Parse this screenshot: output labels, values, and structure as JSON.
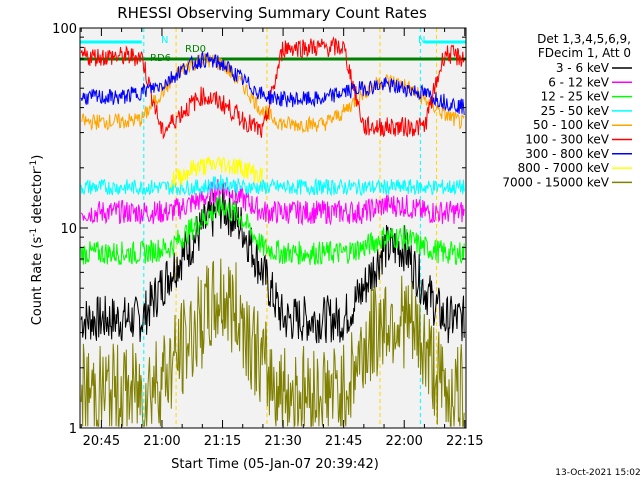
{
  "chart_data": {
    "type": "line",
    "title": "RHESSI Observing Summary Count Rates",
    "xlabel": "Start Time (05-Jan-07 20:39:42)",
    "ylabel": "Count Rate (s",
    "ylabel_sup": "-1",
    "ylabel_tail": " detector",
    "ylabel_sup2": "-1",
    "ylabel_close": ")",
    "y_scale": "log",
    "ylim": [
      1,
      100
    ],
    "xlim_minutes_after_2030": [
      9.7,
      105.3
    ],
    "y_ticks": [
      "100",
      "10",
      "1"
    ],
    "x_ticks": [
      "20:45",
      "21:00",
      "21:15",
      "21:30",
      "21:45",
      "22:00",
      "22:15"
    ],
    "x_tick_minutes_after_2030": [
      15,
      30,
      45,
      60,
      75,
      90,
      105
    ],
    "legend_header": [
      "Det 1,3,4,5,6,9,",
      "FDecim 1, Att 0"
    ],
    "series": [
      {
        "name": "3 - 6 keV",
        "color": "#000000",
        "x": [
          10,
          25,
          32,
          40,
          45,
          50,
          55,
          60,
          68,
          75,
          80,
          85,
          90,
          95,
          100,
          105
        ],
        "y": [
          3.5,
          3.5,
          6,
          10,
          13,
          10,
          6,
          3.5,
          3.5,
          3.5,
          5,
          8,
          8,
          5,
          3.5,
          3.5
        ]
      },
      {
        "name": "6 - 12 keV",
        "color": "#ff00ff",
        "x": [
          10,
          25,
          32,
          40,
          45,
          50,
          55,
          60,
          68,
          75,
          80,
          85,
          90,
          95,
          100,
          105
        ],
        "y": [
          12,
          12,
          12,
          14,
          16,
          14,
          12,
          12,
          12,
          12,
          12,
          13,
          13,
          12,
          12,
          12
        ]
      },
      {
        "name": "12 - 25 keV",
        "color": "#00ff00",
        "x": [
          10,
          25,
          32,
          40,
          45,
          50,
          55,
          60,
          68,
          75,
          80,
          85,
          90,
          95,
          100,
          105
        ],
        "y": [
          7.5,
          7.5,
          8,
          11,
          13,
          11,
          8,
          7.5,
          7.5,
          7.5,
          8,
          9,
          9,
          8,
          7.5,
          7.5
        ]
      },
      {
        "name": "25 - 50 keV",
        "color": "#00ffff",
        "x": [
          10,
          25,
          32,
          40,
          45,
          50,
          55,
          60,
          68,
          75,
          80,
          85,
          90,
          95,
          100,
          105
        ],
        "y": [
          16,
          16,
          16,
          16,
          17,
          16,
          16,
          16,
          16,
          16,
          16,
          16,
          16,
          16,
          16,
          16
        ]
      },
      {
        "name": "50 - 100 keV",
        "color": "#ffa500",
        "x": [
          10,
          20,
          25,
          30,
          35,
          40,
          45,
          50,
          55,
          60,
          65,
          70,
          75,
          80,
          85,
          90,
          95,
          100,
          105
        ],
        "y": [
          34,
          34,
          35,
          48,
          62,
          70,
          66,
          52,
          38,
          33,
          33,
          33,
          38,
          48,
          55,
          52,
          44,
          37,
          33
        ]
      },
      {
        "name": "100 - 300 keV",
        "color": "#ff0000",
        "x": [
          10,
          20,
          25,
          30,
          35,
          40,
          45,
          50,
          55,
          60,
          65,
          70,
          75,
          80,
          85,
          90,
          95,
          100,
          105
        ],
        "y": [
          72,
          72,
          72,
          30,
          38,
          46,
          42,
          35,
          30,
          80,
          80,
          80,
          80,
          32,
          32,
          32,
          32,
          75,
          70
        ]
      },
      {
        "name": "300 - 800 keV",
        "color": "#0000ff",
        "x": [
          10,
          20,
          25,
          30,
          35,
          40,
          45,
          50,
          55,
          60,
          65,
          70,
          75,
          80,
          85,
          90,
          95,
          100,
          105
        ],
        "y": [
          45,
          45,
          48,
          52,
          62,
          70,
          66,
          55,
          46,
          44,
          44,
          44,
          48,
          50,
          52,
          50,
          47,
          43,
          40
        ]
      },
      {
        "name": "800 - 7000 keV",
        "color": "#ffff00",
        "x": [
          32,
          38,
          45,
          50,
          55
        ],
        "y": [
          17,
          20,
          21,
          20,
          18
        ]
      },
      {
        "name": "7000 - 15000 keV",
        "color": "#808000",
        "x": [
          10,
          25,
          32,
          40,
          45,
          50,
          55,
          60,
          68,
          75,
          80,
          85,
          90,
          95,
          100,
          105
        ],
        "y": [
          1.5,
          1.5,
          2,
          3.5,
          4.5,
          3.5,
          2,
          1.5,
          1.5,
          1.5,
          2.5,
          3.5,
          3.5,
          2.5,
          1.5,
          1.5
        ]
      }
    ],
    "annotations": [
      {
        "text": "N",
        "color": "#00ffff"
      },
      {
        "text": "RD6",
        "color": "#008000"
      },
      {
        "text": "RD0",
        "color": "#008000"
      },
      {
        "text": "N",
        "color": "#00ffff"
      }
    ],
    "footer_date": "13-Oct-2021 15:02"
  }
}
